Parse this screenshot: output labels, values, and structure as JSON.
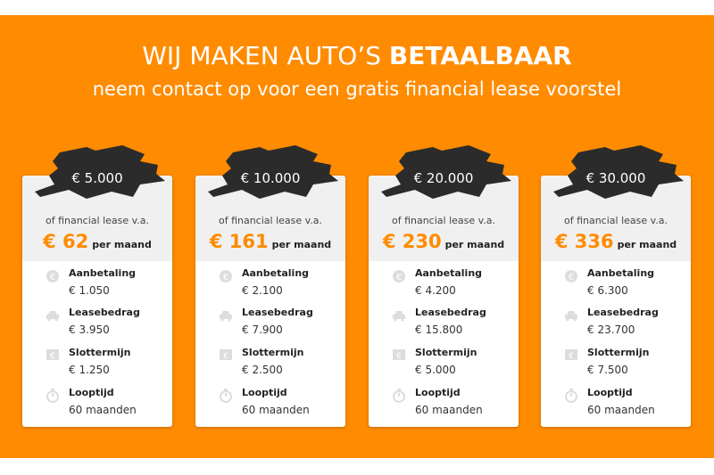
{
  "header": {
    "title_regular": "WIJ MAKEN AUTO’S",
    "title_bold": "BETAALBAAR",
    "subtitle": "neem contact op voor een gratis financial lease voorstel"
  },
  "colors": {
    "accent": "#ff8b00",
    "blob": "#2b2b2b"
  },
  "labels": {
    "lease_prefix": "of financial lease v.a.",
    "per_month": "per maand",
    "down": "Aanbetaling",
    "lease": "Leasebedrag",
    "final": "Slottermijn",
    "term": "Looptijd"
  },
  "icons": [
    "euro-coin-icon",
    "car-icon",
    "final-payment-icon",
    "stopwatch-icon"
  ],
  "cards": [
    {
      "amount": "€ 5.000",
      "monthly": "€ 62",
      "down": "€ 1.050",
      "lease": "€ 3.950",
      "final": "€ 1.250",
      "term": "60 maanden"
    },
    {
      "amount": "€ 10.000",
      "monthly": "€ 161",
      "down": "€ 2.100",
      "lease": "€ 7.900",
      "final": "€ 2.500",
      "term": "60 maanden"
    },
    {
      "amount": "€ 20.000",
      "monthly": "€ 230",
      "down": "€ 4.200",
      "lease": "€ 15.800",
      "final": "€ 5.000",
      "term": "60 maanden"
    },
    {
      "amount": "€ 30.000",
      "monthly": "€ 336",
      "down": "€ 6.300",
      "lease": "€ 23.700",
      "final": "€ 7.500",
      "term": "60 maanden"
    }
  ]
}
